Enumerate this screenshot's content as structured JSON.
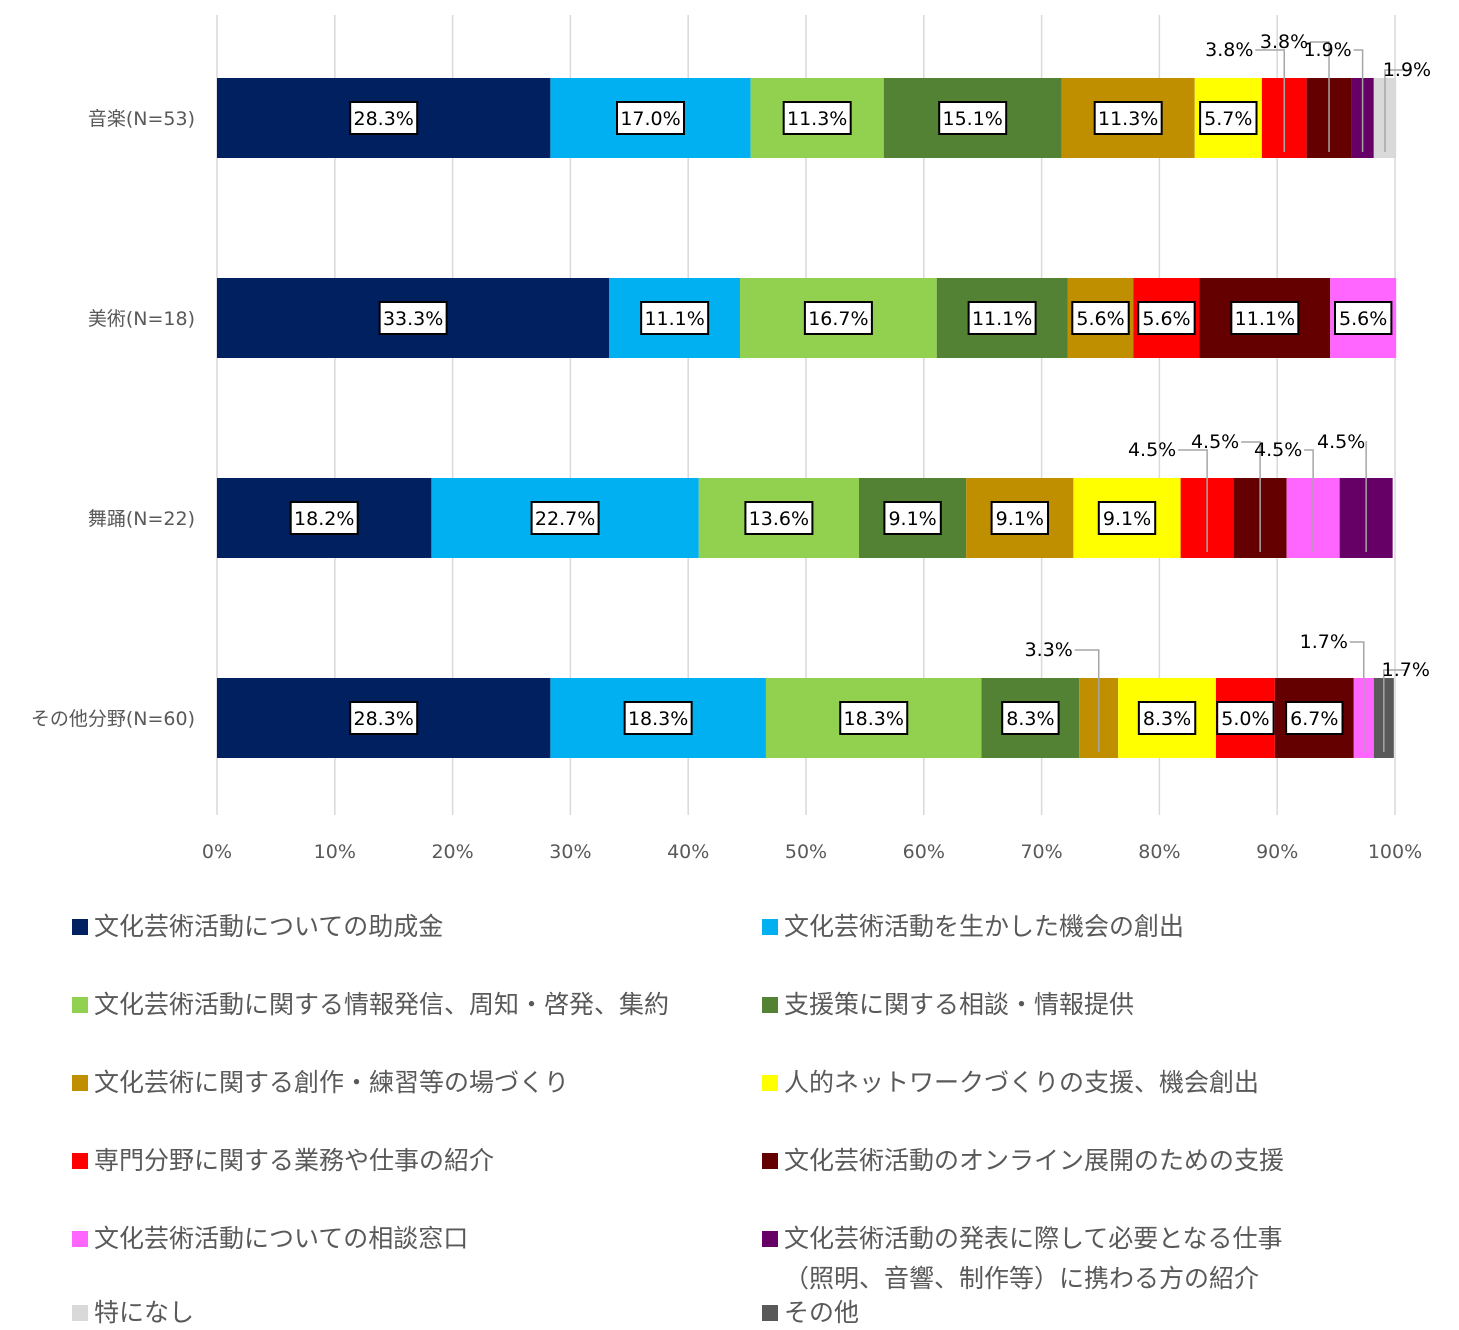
{
  "chart_data": {
    "type": "bar",
    "orientation": "horizontal",
    "stacked": "percent",
    "categories": [
      "音楽(N=53)",
      "美術(N=18)",
      "舞踊(N=22)",
      "その他分野(N=60)"
    ],
    "xlim": [
      0,
      100
    ],
    "x_ticks": [
      "0%",
      "10%",
      "20%",
      "30%",
      "40%",
      "50%",
      "60%",
      "70%",
      "80%",
      "90%",
      "100%"
    ],
    "grid": true,
    "legend_position": "bottom",
    "series": [
      {
        "name": "文化芸術活動についての助成金",
        "color": "#002060",
        "values": [
          28.3,
          33.3,
          18.2,
          28.3
        ],
        "labels": [
          "28.3%",
          "33.3%",
          "18.2%",
          "28.3%"
        ]
      },
      {
        "name": "文化芸術活動を生かした機会の創出",
        "color": "#00B0F0",
        "values": [
          17.0,
          11.1,
          22.7,
          18.3
        ],
        "labels": [
          "17.0%",
          "11.1%",
          "22.7%",
          "18.3%"
        ]
      },
      {
        "name": "文化芸術活動に関する情報発信、周知・啓発、集約",
        "color": "#92D050",
        "values": [
          11.3,
          16.7,
          13.6,
          18.3
        ],
        "labels": [
          "11.3%",
          "16.7%",
          "13.6%",
          "18.3%"
        ]
      },
      {
        "name": "支援策に関する相談・情報提供",
        "color": "#548235",
        "values": [
          15.1,
          11.1,
          9.1,
          8.3
        ],
        "labels": [
          "15.1%",
          "11.1%",
          "9.1%",
          "8.3%"
        ]
      },
      {
        "name": " 文化芸術に関する創作・練習等の場づくり",
        "color": "#BF8F00",
        "values": [
          11.3,
          5.6,
          9.1,
          3.3
        ],
        "labels": [
          "11.3%",
          "5.6%",
          "9.1%",
          "3.3%"
        ]
      },
      {
        "name": "人的ネットワークづくりの支援、機会創出",
        "color": "#FFFF00",
        "values": [
          5.7,
          0,
          9.1,
          8.3
        ],
        "labels": [
          "5.7%",
          "",
          "9.1%",
          "8.3%"
        ]
      },
      {
        "name": "専門分野に関する業務や仕事の紹介",
        "color": "#FF0000",
        "values": [
          3.8,
          5.6,
          4.5,
          5.0
        ],
        "labels": [
          "3.8%",
          "5.6%",
          "4.5%",
          "5.0%"
        ]
      },
      {
        "name": "文化芸術活動のオンライン展開のための支援",
        "color": "#640000",
        "values": [
          3.8,
          11.1,
          4.5,
          6.7
        ],
        "labels": [
          "3.8%",
          "11.1%",
          "4.5%",
          "6.7%"
        ]
      },
      {
        "name": "文化芸術活動についての相談窓口",
        "color": "#FF66FF",
        "values": [
          0,
          5.6,
          4.5,
          1.7
        ],
        "labels": [
          "",
          "5.6%",
          "4.5%",
          "1.7%"
        ]
      },
      {
        "name": "文化芸術活動の発表に際して必要となる仕事（照明、音響、制作等）に携わる方の紹介",
        "color": "#660066",
        "values": [
          1.9,
          0,
          4.5,
          0
        ],
        "labels": [
          "1.9%",
          "",
          "4.5%",
          ""
        ]
      },
      {
        "name": "特になし",
        "color": "#D9D9D9",
        "values": [
          1.9,
          0,
          0,
          0
        ],
        "labels": [
          "1.9%",
          "",
          "",
          ""
        ]
      },
      {
        "name": "その他",
        "color": "#595959",
        "values": [
          0,
          0,
          0,
          1.7
        ],
        "labels": [
          "",
          "",
          "",
          "1.7%"
        ]
      }
    ]
  },
  "legend": {
    "items": [
      {
        "lines": [
          "文化芸術活動についての助成金"
        ],
        "color": "#002060"
      },
      {
        "lines": [
          "文化芸術活動を生かした機会の創出"
        ],
        "color": "#00B0F0"
      },
      {
        "lines": [
          "文化芸術活動に関する情報発信、周知・啓発、集約"
        ],
        "color": "#92D050"
      },
      {
        "lines": [
          "支援策に関する相談・情報提供"
        ],
        "color": "#548235"
      },
      {
        "lines": [
          " 文化芸術に関する創作・練習等の場づくり"
        ],
        "color": "#BF8F00"
      },
      {
        "lines": [
          "人的ネットワークづくりの支援、機会創出"
        ],
        "color": "#FFFF00"
      },
      {
        "lines": [
          "専門分野に関する業務や仕事の紹介"
        ],
        "color": "#FF0000"
      },
      {
        "lines": [
          "文化芸術活動のオンライン展開のための支援"
        ],
        "color": "#640000"
      },
      {
        "lines": [
          "文化芸術活動についての相談窓口"
        ],
        "color": "#FF66FF"
      },
      {
        "lines": [
          "文化芸術活動の発表に際して必要となる仕事",
          "（照明、音響、制作等）に携わる方の紹介"
        ],
        "color": "#660066"
      },
      {
        "lines": [
          "特になし"
        ],
        "color": "#D9D9D9"
      },
      {
        "lines": [
          "その他"
        ],
        "color": "#595959"
      }
    ]
  }
}
